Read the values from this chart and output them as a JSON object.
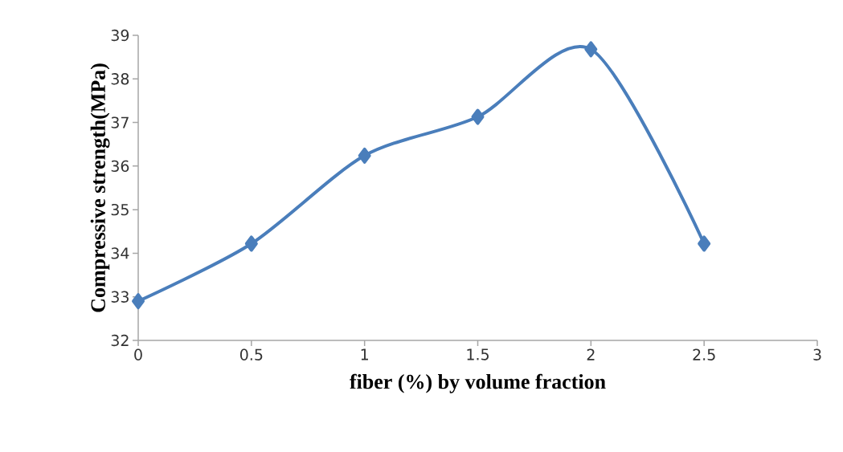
{
  "chart_data": {
    "type": "line",
    "xlabel": "fiber (%)  by volume fraction",
    "ylabel": "Compressive strength(MPa)",
    "x": [
      0,
      0.5,
      1,
      1.5,
      2,
      2.5
    ],
    "series": [
      {
        "color": "#4a7ebb",
        "values": [
          32.9,
          34.22,
          36.24,
          37.13,
          38.68,
          34.22
        ]
      }
    ],
    "xlim": [
      0,
      3
    ],
    "xticks": [
      0,
      0.5,
      1,
      1.5,
      2,
      2.5,
      3
    ],
    "ylim": [
      32,
      39
    ],
    "yticks": [
      32,
      33,
      34,
      35,
      36,
      37,
      38,
      39
    ],
    "grid": false,
    "marker": "diamond",
    "line_style": "solid"
  }
}
